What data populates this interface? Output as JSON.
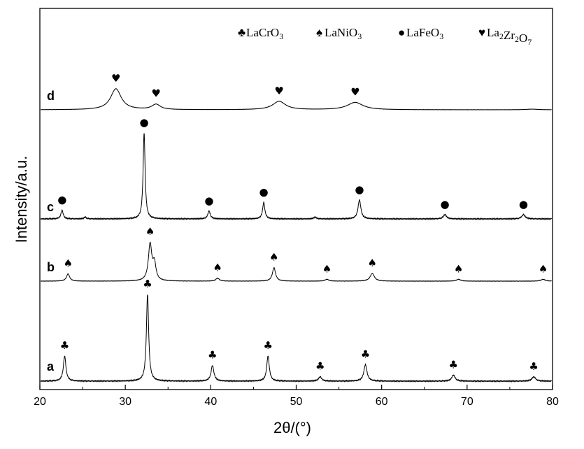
{
  "chart_data": {
    "type": "line",
    "xlabel": "2θ/(°)",
    "ylabel": "Intensity/a.u.",
    "xlim": [
      20,
      80
    ],
    "x_ticks": [
      "20",
      "30",
      "40",
      "50",
      "60",
      "70",
      "80"
    ],
    "grid": false,
    "legend_position": "top-right",
    "legend": [
      {
        "symbol": "♣",
        "name": "LaCrO3"
      },
      {
        "symbol": "♠",
        "name": "LaNiO3"
      },
      {
        "symbol": "●",
        "name": "LaFeO3"
      },
      {
        "symbol": "♥",
        "name": "La2Zr2O7"
      }
    ],
    "series": [
      {
        "name": "a",
        "label": "a",
        "marker": "♣",
        "peaks": [
          {
            "x": 22.9,
            "h": 0.29,
            "w": 0.18
          },
          {
            "x": 32.6,
            "h": 1.0,
            "w": 0.16
          },
          {
            "x": 40.2,
            "h": 0.18,
            "w": 0.2
          },
          {
            "x": 46.7,
            "h": 0.29,
            "w": 0.18
          },
          {
            "x": 52.8,
            "h": 0.05,
            "w": 0.22
          },
          {
            "x": 58.1,
            "h": 0.19,
            "w": 0.22
          },
          {
            "x": 68.4,
            "h": 0.07,
            "w": 0.24
          },
          {
            "x": 77.8,
            "h": 0.05,
            "w": 0.26
          }
        ]
      },
      {
        "name": "b",
        "label": "b",
        "marker": "♠",
        "peaks": [
          {
            "x": 23.3,
            "h": 0.2,
            "w": 0.22
          },
          {
            "x": 32.9,
            "h": 1.0,
            "w": 0.24
          },
          {
            "x": 33.4,
            "h": 0.45,
            "w": 0.22
          },
          {
            "x": 40.8,
            "h": 0.08,
            "w": 0.24
          },
          {
            "x": 47.4,
            "h": 0.37,
            "w": 0.22
          },
          {
            "x": 53.6,
            "h": 0.05,
            "w": 0.26
          },
          {
            "x": 58.9,
            "h": 0.21,
            "w": 0.3
          },
          {
            "x": 69.0,
            "h": 0.05,
            "w": 0.3
          },
          {
            "x": 78.9,
            "h": 0.05,
            "w": 0.3
          }
        ]
      },
      {
        "name": "c",
        "label": "c",
        "marker": "●",
        "peaks": [
          {
            "x": 22.6,
            "h": 0.1,
            "w": 0.16
          },
          {
            "x": 25.3,
            "h": 0.02,
            "w": 0.16
          },
          {
            "x": 32.2,
            "h": 1.0,
            "w": 0.14
          },
          {
            "x": 39.8,
            "h": 0.09,
            "w": 0.18
          },
          {
            "x": 46.2,
            "h": 0.19,
            "w": 0.16
          },
          {
            "x": 52.2,
            "h": 0.02,
            "w": 0.18
          },
          {
            "x": 57.4,
            "h": 0.22,
            "w": 0.2
          },
          {
            "x": 67.4,
            "h": 0.05,
            "w": 0.22
          },
          {
            "x": 76.6,
            "h": 0.05,
            "w": 0.24
          }
        ]
      },
      {
        "name": "d",
        "label": "d",
        "marker": "♥",
        "peaks": [
          {
            "x": 28.9,
            "h": 1.0,
            "w": 0.75
          },
          {
            "x": 33.6,
            "h": 0.25,
            "w": 0.6
          },
          {
            "x": 48.0,
            "h": 0.4,
            "w": 0.9
          },
          {
            "x": 56.9,
            "h": 0.35,
            "w": 1.1
          },
          {
            "x": 77.6,
            "h": 0.03,
            "w": 0.8
          }
        ]
      }
    ],
    "peak_markers": [
      {
        "series": "a",
        "x": 22.9
      },
      {
        "series": "a",
        "x": 32.6
      },
      {
        "series": "a",
        "x": 40.2
      },
      {
        "series": "a",
        "x": 46.7
      },
      {
        "series": "a",
        "x": 52.8
      },
      {
        "series": "a",
        "x": 58.1
      },
      {
        "series": "a",
        "x": 68.4
      },
      {
        "series": "a",
        "x": 77.8
      },
      {
        "series": "b",
        "x": 23.3
      },
      {
        "series": "b",
        "x": 32.9
      },
      {
        "series": "b",
        "x": 40.8
      },
      {
        "series": "b",
        "x": 47.4
      },
      {
        "series": "b",
        "x": 53.6
      },
      {
        "series": "b",
        "x": 58.9
      },
      {
        "series": "b",
        "x": 69.0
      },
      {
        "series": "b",
        "x": 78.9
      },
      {
        "series": "c",
        "x": 22.6
      },
      {
        "series": "c",
        "x": 32.2
      },
      {
        "series": "c",
        "x": 39.8
      },
      {
        "series": "c",
        "x": 46.2
      },
      {
        "series": "c",
        "x": 57.4
      },
      {
        "series": "c",
        "x": 67.4
      },
      {
        "series": "c",
        "x": 76.6
      },
      {
        "series": "d",
        "x": 28.9
      },
      {
        "series": "d",
        "x": 33.6
      },
      {
        "series": "d",
        "x": 48.0
      },
      {
        "series": "d",
        "x": 56.9
      }
    ]
  }
}
